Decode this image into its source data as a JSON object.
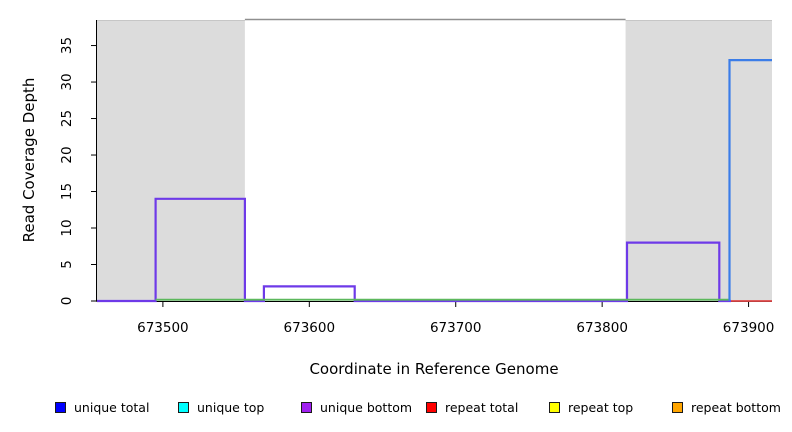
{
  "axes": {
    "xlabel": "Coordinate in Reference Genome",
    "ylabel": "Read Coverage Depth"
  },
  "chart_data": {
    "type": "line",
    "title": "",
    "xlabel": "Coordinate in Reference Genome",
    "ylabel": "Read Coverage Depth",
    "xlim": [
      673455,
      673916
    ],
    "ylim": [
      0,
      38.5
    ],
    "x_ticks": [
      673500,
      673600,
      673700,
      673800,
      673900
    ],
    "y_ticks": [
      0,
      5,
      10,
      15,
      20,
      25,
      30,
      35
    ],
    "grid": false,
    "legend_position": "bottom",
    "background_regions": [
      {
        "name": "repeat-region-left",
        "from": 673455,
        "to": 673556,
        "color": "#dcdcdc"
      },
      {
        "name": "repeat-region-right",
        "from": 673816,
        "to": 673916,
        "color": "#dcdcdc"
      }
    ],
    "top_boundary_line": {
      "from": 673556,
      "to": 673816,
      "y": 38.5,
      "color": "#8f8f8f"
    },
    "series": [
      {
        "name": "purple-step-unique-bottom",
        "color": "#6e3ae8",
        "width": 2.2,
        "dy": 0,
        "points": [
          [
            673455,
            0
          ],
          [
            673495,
            0
          ],
          [
            673495,
            14
          ],
          [
            673556,
            14
          ],
          [
            673556,
            0
          ],
          [
            673569,
            0
          ],
          [
            673569,
            2
          ],
          [
            673631,
            2
          ],
          [
            673631,
            0
          ],
          [
            673817,
            0
          ],
          [
            673817,
            8
          ],
          [
            673880,
            8
          ],
          [
            673880,
            0
          ],
          [
            673888,
            0
          ]
        ]
      },
      {
        "name": "green-zero-line",
        "color": "#5cb85c",
        "width": 1.8,
        "dy": -1.3,
        "points": [
          [
            673495,
            0
          ],
          [
            673887,
            0
          ]
        ]
      },
      {
        "name": "blue-step-spike",
        "color": "#3b7de8",
        "width": 2.2,
        "dy": 0,
        "points": [
          [
            673887,
            0
          ],
          [
            673887,
            33
          ],
          [
            673916,
            33
          ]
        ]
      },
      {
        "name": "red-zero-line",
        "color": "#e04848",
        "width": 1.8,
        "dy": 0,
        "points": [
          [
            673888,
            0
          ],
          [
            673916,
            0
          ]
        ]
      }
    ]
  },
  "legend": {
    "items": [
      {
        "label": "unique total",
        "color": "#0000ff"
      },
      {
        "label": "unique top",
        "color": "#00ffff"
      },
      {
        "label": "unique bottom",
        "color": "#a020f0"
      },
      {
        "label": "repeat total",
        "color": "#ff0000"
      },
      {
        "label": "repeat top",
        "color": "#ffff00"
      },
      {
        "label": "repeat bottom",
        "color": "#ffa500"
      }
    ]
  }
}
